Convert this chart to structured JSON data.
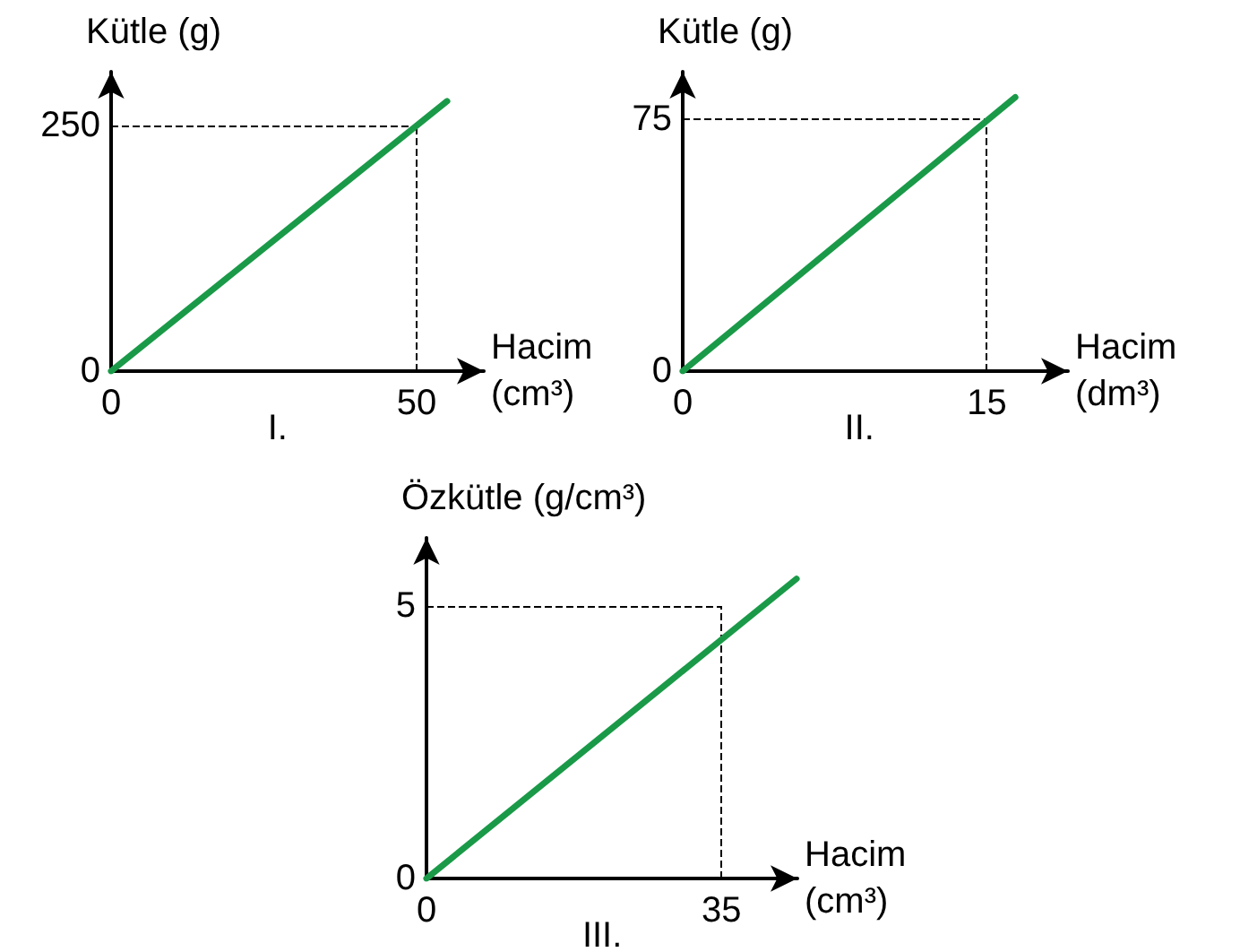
{
  "chart_data": [
    {
      "type": "line",
      "xlabel": "Hacim (cm³)",
      "ylabel": "Kütle (g)",
      "annotations": [
        "I."
      ],
      "series": [
        {
          "color": "#1a9a48",
          "x": [
            0,
            55
          ],
          "values": [
            0,
            275
          ]
        }
      ],
      "xlim": [
        0,
        61
      ],
      "ylim": [
        0,
        305
      ],
      "xticks": [
        0,
        50
      ],
      "yticks": [
        0,
        250
      ],
      "grid": false,
      "marker": "none",
      "line_style": "solid",
      "ref_lines": [
        {
          "axis": "x",
          "value": 50,
          "line_style": "dashed",
          "color": "#000000"
        },
        {
          "axis": "y",
          "value": 250,
          "line_style": "dashed",
          "color": "#000000"
        }
      ]
    },
    {
      "type": "line",
      "xlabel": "Hacim (dm³)",
      "ylabel": "Kütle (g)",
      "annotations": [
        "II."
      ],
      "series": [
        {
          "color": "#1a9a48",
          "x": [
            0,
            16.4
          ],
          "values": [
            0,
            81.4
          ]
        }
      ],
      "xlim": [
        0,
        19
      ],
      "ylim": [
        0,
        89
      ],
      "xticks": [
        0,
        15
      ],
      "yticks": [
        0,
        75
      ],
      "grid": false,
      "marker": "none",
      "line_style": "solid",
      "ref_lines": [
        {
          "axis": "x",
          "value": 15,
          "line_style": "dashed",
          "color": "#000000"
        },
        {
          "axis": "y",
          "value": 75,
          "line_style": "dashed",
          "color": "#000000"
        }
      ]
    },
    {
      "type": "line",
      "xlabel": "Hacim (cm³)",
      "ylabel": "Özkütle (g/cm³)",
      "annotations": [
        "III."
      ],
      "series": [
        {
          "color": "#1a9a48",
          "x": [
            0,
            43.9
          ],
          "values": [
            0,
            5.5
          ]
        }
      ],
      "xlim": [
        0,
        44
      ],
      "ylim": [
        0,
        6.25
      ],
      "xticks": [
        0,
        35
      ],
      "yticks": [
        0,
        5
      ],
      "grid": false,
      "marker": "none",
      "line_style": "solid",
      "ref_lines": [
        {
          "axis": "x",
          "value": 35,
          "line_style": "dashed",
          "color": "#000000"
        },
        {
          "axis": "y",
          "value": 5,
          "line_style": "dashed",
          "color": "#000000"
        }
      ]
    }
  ]
}
